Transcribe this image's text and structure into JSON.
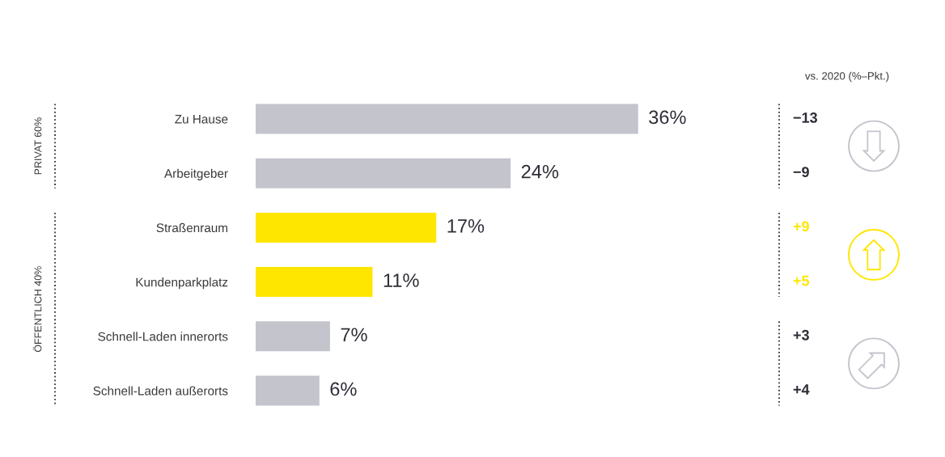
{
  "chart_data": {
    "type": "bar",
    "orientation": "horizontal",
    "categories": [
      "Zu Hause",
      "Arbeitgeber",
      "Straßenraum",
      "Kundenparkplatz",
      "Schnell-Laden innerorts",
      "Schnell-Laden außerorts"
    ],
    "values": [
      36,
      24,
      17,
      11,
      7,
      6
    ],
    "colors": [
      "#c4c4cd",
      "#c4c4cd",
      "#ffe600",
      "#ffe600",
      "#c4c4cd",
      "#c4c4cd"
    ],
    "value_labels": [
      "36%",
      "24%",
      "17%",
      "11%",
      "7%",
      "6%"
    ],
    "annotations": [
      "vs. 2020 (%–Pkt.)",
      "PRIVAT 60%",
      "ÖFFENTLICH 40%",
      "−13",
      "−9",
      "+9",
      "+5",
      "+3",
      "+4"
    ],
    "grid": false,
    "tick_labels": "y"
  }
}
